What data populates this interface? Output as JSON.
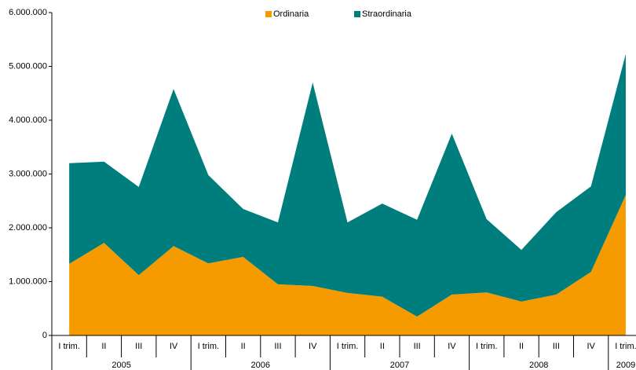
{
  "chart_data": {
    "type": "stacked_area",
    "categories": [
      "I trim.",
      "II",
      "III",
      "IV",
      "I trim.",
      "II",
      "III",
      "IV",
      "I trim.",
      "II",
      "III",
      "IV",
      "I trim.",
      "II",
      "III",
      "IV",
      "I trim."
    ],
    "years": [
      "2005",
      "2006",
      "2007",
      "2008",
      "2009"
    ],
    "series": [
      {
        "name": "Ordinaria",
        "color": "#f59b00",
        "values": [
          1330000,
          1720000,
          1120000,
          1660000,
          1340000,
          1460000,
          950000,
          920000,
          790000,
          720000,
          350000,
          760000,
          800000,
          630000,
          760000,
          1180000,
          2610000
        ]
      },
      {
        "name": "Straordinaria",
        "color": "#007d7d",
        "values": [
          1870000,
          1510000,
          1640000,
          2920000,
          1640000,
          890000,
          1150000,
          3780000,
          1310000,
          1730000,
          1800000,
          2990000,
          1360000,
          960000,
          1530000,
          1590000,
          2620000
        ]
      }
    ],
    "ylim": [
      0,
      6000000
    ],
    "yticks": [
      0,
      {
        "value": 1000000,
        "label": "1.000.000"
      },
      {
        "value": 2000000,
        "label": "2.000.000"
      },
      {
        "value": 3000000,
        "label": "3.000.000"
      },
      {
        "value": 4000000,
        "label": "4.000.000"
      },
      {
        "value": 5000000,
        "label": "5.000.000"
      },
      {
        "value": 6000000,
        "label": "6.000.000"
      }
    ],
    "legend": "top"
  }
}
